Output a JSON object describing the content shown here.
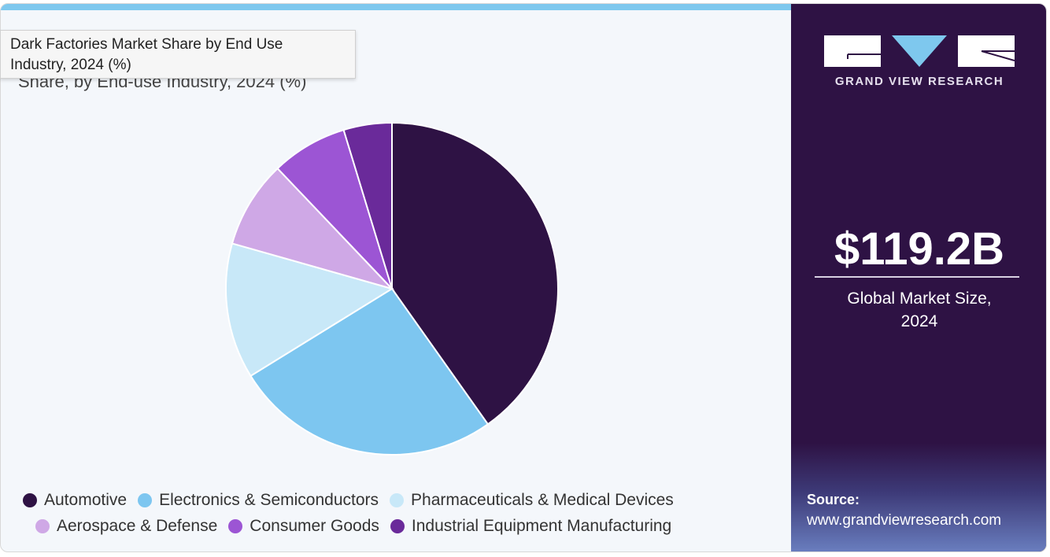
{
  "tooltip": {
    "line1": "Dark Factories Market Share by End Use",
    "line2": "Industry, 2024 (%)"
  },
  "chart_data": {
    "type": "pie",
    "title": "Share, by End-use Industry, 2024 (%)",
    "categories": [
      "Automotive",
      "Electronics & Semiconductors",
      "Pharmaceuticals & Medical Devices",
      "Aerospace & Defense",
      "Consumer Goods",
      "Industrial Equipment Manufacturing"
    ],
    "values": [
      40.2,
      26.0,
      13.2,
      8.5,
      7.4,
      4.7
    ],
    "colors": [
      "#2e1244",
      "#7dc6f0",
      "#c8e8f8",
      "#cfa8e6",
      "#9c55d4",
      "#6a2a9a"
    ],
    "legend_position": "bottom"
  },
  "side": {
    "brand": "GRAND VIEW RESEARCH",
    "market_size": "$119.2B",
    "market_label_1": "Global Market Size,",
    "market_label_2": "2024",
    "source_label": "Source:",
    "source_url": "www.grandviewresearch.com",
    "colors": {
      "bg": "#2e1244",
      "accent": "#7ec8ee"
    }
  }
}
